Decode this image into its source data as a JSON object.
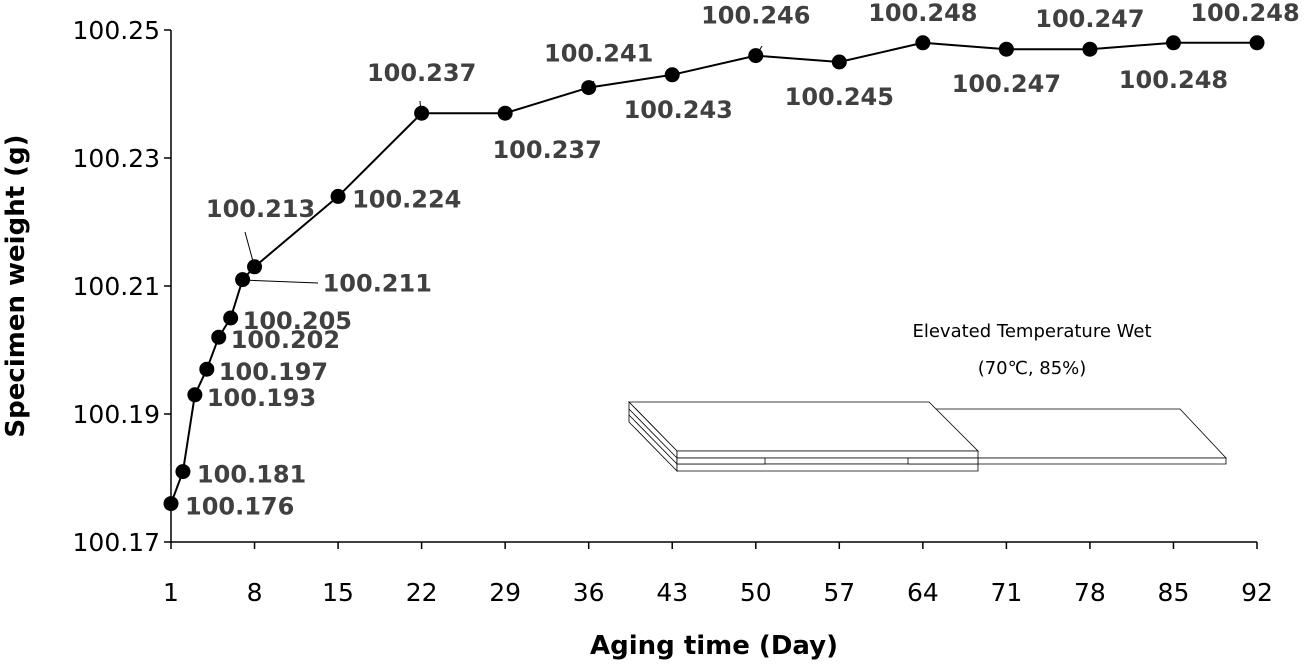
{
  "chart_data": {
    "type": "line",
    "title": "",
    "xlabel": "Aging time (Day)",
    "ylabel": "Specimen weight (g)",
    "xlim": [
      1,
      92
    ],
    "ylim": [
      100.17,
      100.25
    ],
    "x_ticks": [
      "1",
      "8",
      "15",
      "22",
      "29",
      "36",
      "43",
      "50",
      "57",
      "64",
      "71",
      "78",
      "85",
      "92"
    ],
    "y_ticks": [
      "100.17",
      "100.19",
      "100.21",
      "100.23",
      "100.25"
    ],
    "series": [
      {
        "name": "Specimen weight",
        "x": [
          1,
          2,
          3,
          4,
          5,
          6,
          7,
          8,
          15,
          22,
          29,
          36,
          43,
          50,
          57,
          64,
          71,
          78,
          85,
          92
        ],
        "values": [
          100.176,
          100.181,
          100.193,
          100.197,
          100.202,
          100.205,
          100.211,
          100.213,
          100.224,
          100.237,
          100.237,
          100.241,
          100.243,
          100.246,
          100.245,
          100.248,
          100.247,
          100.247,
          100.248,
          100.248
        ],
        "labels": [
          "100.176",
          "100.181",
          "100.193",
          "100.197",
          "100.202",
          "100.205",
          "100.211",
          "100.213",
          "100.224",
          "100.237",
          "100.237",
          "100.241",
          "100.243",
          "100.246",
          "100.245",
          "100.248",
          "100.247",
          "100.247",
          "100.248",
          "100.248"
        ]
      }
    ],
    "annotation": {
      "condition_title": "Elevated Temperature Wet",
      "condition_detail": "(70℃, 85%)"
    },
    "grid": false
  },
  "colors": {
    "line": "#000000",
    "marker": "#000000",
    "data_label": "#404040"
  }
}
